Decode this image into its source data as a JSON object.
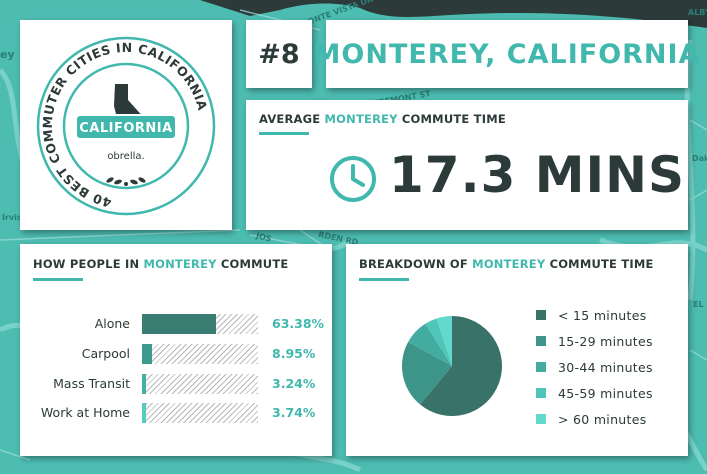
{
  "map": {
    "streets": [
      "ONTE VISTA DR",
      "FREMONT ST",
      "RDEN RD",
      "JOS",
      "Irvis",
      "ey",
      "ALBY",
      "Dak",
      "EL"
    ]
  },
  "badge": {
    "ring_text": "40 BEST COMMUTER CITIES IN CALIFORNIA",
    "ribbon": "CALIFORNIA",
    "brand": "obrella."
  },
  "header": {
    "rank": "#8",
    "city": "MONTEREY, CALIFORNIA"
  },
  "average": {
    "label_pre": "AVERAGE ",
    "label_city": "MONTEREY",
    "label_post": " COMMUTE TIME",
    "value": "17.3 MINS",
    "icon": "clock-icon"
  },
  "how": {
    "label_pre": "HOW PEOPLE IN ",
    "label_city": "MONTEREY",
    "label_post": " COMMUTE",
    "rows": [
      {
        "name": "Alone",
        "pct_text": "63.38%",
        "fraction": 0.6338,
        "color": "#3a7d73"
      },
      {
        "name": "Carpool",
        "pct_text": "8.95%",
        "fraction": 0.0895,
        "color": "#3d9a8e"
      },
      {
        "name": "Mass Transit",
        "pct_text": "3.24%",
        "fraction": 0.0324,
        "color": "#44b0a4"
      },
      {
        "name": "Work at Home",
        "pct_text": "3.74%",
        "fraction": 0.0374,
        "color": "#55ccc0"
      }
    ]
  },
  "breakdown": {
    "label_pre": "BREAKDOWN OF ",
    "label_city": "MONTEREY",
    "label_post": " COMMUTE TIME"
  },
  "chart_data": {
    "type": "pie",
    "title": "",
    "legend_position": "right",
    "slices": [
      {
        "name": "< 15 minutes",
        "value": 61,
        "color": "#387268"
      },
      {
        "name": "15-29 minutes",
        "value": 22,
        "color": "#3d9489"
      },
      {
        "name": "30-44 minutes",
        "value": 8,
        "color": "#43aca0"
      },
      {
        "name": "45-59 minutes",
        "value": 4,
        "color": "#4fc4b8"
      },
      {
        "name": "> 60 minutes",
        "value": 5,
        "color": "#63d8cc"
      }
    ]
  },
  "colors": {
    "accent": "#41b8ad",
    "dark": "#2d3a3a",
    "map_bg": "#4dbdb2"
  }
}
